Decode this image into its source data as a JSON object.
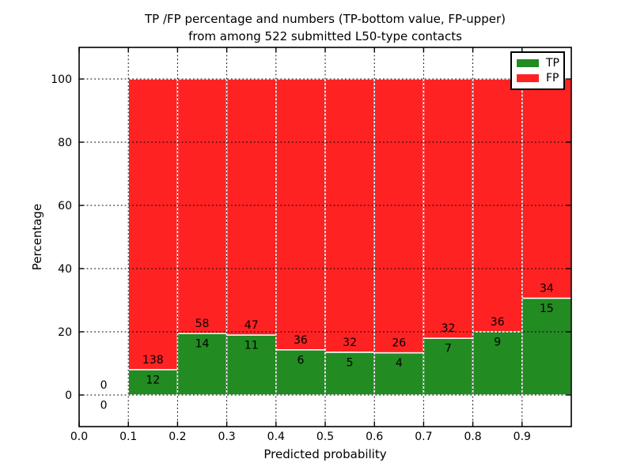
{
  "figure": {
    "title_line1": "TP /FP percentage and numbers (TP-bottom value, FP-upper)",
    "title_line2": "from among 522 submitted L50-type contacts"
  },
  "chart_data": {
    "type": "bar",
    "subtype": "stacked-percentage-histogram",
    "title": "TP /FP percentage and numbers (TP-bottom value, FP-upper) from among 522 submitted L50-type contacts",
    "xlabel": "Predicted probability",
    "ylabel": "Percentage",
    "xlim": [
      0.0,
      1.0
    ],
    "ylim": [
      -10,
      110
    ],
    "x_ticks": [
      0.0,
      0.1,
      0.2,
      0.3,
      0.4,
      0.5,
      0.6,
      0.7,
      0.8,
      0.9
    ],
    "x_tick_labels": [
      "0.0",
      "0.1",
      "0.2",
      "0.3",
      "0.4",
      "0.5",
      "0.6",
      "0.7",
      "0.8",
      "0.9"
    ],
    "y_ticks": [
      0,
      20,
      40,
      60,
      80,
      100
    ],
    "y_tick_labels": [
      "0",
      "20",
      "40",
      "60",
      "80",
      "100"
    ],
    "grid": "dotted",
    "legend_location": "upper right",
    "total_contacts": 522,
    "bin_edges": [
      0.0,
      0.1,
      0.2,
      0.3,
      0.4,
      0.5,
      0.6,
      0.7,
      0.8,
      0.9,
      1.0
    ],
    "bars_normalized": "each bin scaled so TP%+FP% = 100, green TP on bottom, red FP on top, count labels drawn at the TP/FP boundary",
    "series": [
      {
        "name": "TP",
        "color": "#228b22",
        "counts": [
          0,
          12,
          14,
          11,
          6,
          5,
          4,
          7,
          9,
          15
        ]
      },
      {
        "name": "FP",
        "color": "#ff2222",
        "counts": [
          0,
          138,
          58,
          47,
          36,
          32,
          26,
          32,
          36,
          34
        ]
      }
    ],
    "bar_edge_color": "#ffffff",
    "text_color": "#000000",
    "background_color": "#ffffff"
  }
}
